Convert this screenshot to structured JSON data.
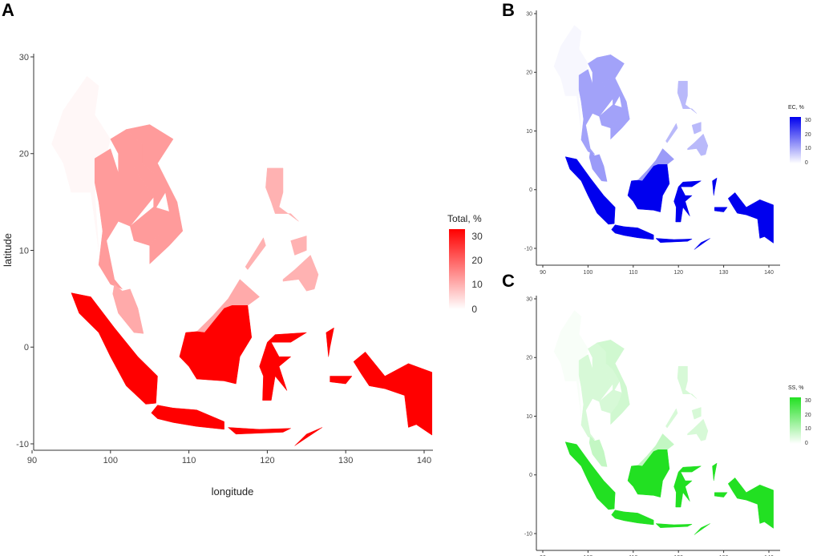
{
  "panels": [
    {
      "id": "A",
      "label": "A",
      "legend_title": "Total, %",
      "xlabel": "longitude",
      "ylabel": "latitude",
      "color_high": "#ff0000",
      "values": {
        "Myanmar": 1,
        "Thailand": 13,
        "Laos": 13,
        "Vietnam": 13,
        "Cambodia": 13,
        "Malaysia": 11,
        "Philippines": 10,
        "Indonesia": 33
      }
    },
    {
      "id": "B",
      "label": "B",
      "legend_title": "EC, %",
      "xlabel": "",
      "ylabel": "",
      "color_high": "#0000ee",
      "values": {
        "Myanmar": 1,
        "Thailand": 12,
        "Laos": 12,
        "Vietnam": 12,
        "Cambodia": 12,
        "Malaysia": 13,
        "Philippines": 9,
        "Indonesia": 33
      }
    },
    {
      "id": "C",
      "label": "C",
      "legend_title": "SS, %",
      "xlabel": "",
      "ylabel": "",
      "color_high": "#22e022",
      "values": {
        "Myanmar": 1,
        "Thailand": 6,
        "Laos": 6,
        "Vietnam": 7,
        "Cambodia": 6,
        "Malaysia": 9,
        "Philippines": 6,
        "Indonesia": 33
      }
    }
  ],
  "chart_data": {
    "type": "choropleth",
    "xlim": [
      90,
      143
    ],
    "ylim": [
      -11,
      30
    ],
    "xticks": [
      "90",
      "100",
      "110",
      "120",
      "130",
      "140"
    ],
    "yticks": [
      "-10",
      "0",
      "10",
      "20",
      "30"
    ],
    "legend_ticks": [
      "0",
      "10",
      "20",
      "30"
    ],
    "scale_max": 33,
    "countries": {
      "Myanmar": [
        [
          [
            92.5,
            21
          ],
          [
            94,
            24.5
          ],
          [
            97,
            28
          ],
          [
            98.5,
            27
          ],
          [
            98,
            24
          ],
          [
            100,
            21.5
          ],
          [
            99,
            18.5
          ],
          [
            98,
            16
          ],
          [
            98.5,
            10
          ],
          [
            97.5,
            16
          ],
          [
            95,
            16
          ],
          [
            94,
            19
          ]
        ]
      ],
      "Thailand": [
        [
          [
            98,
            19.5
          ],
          [
            100,
            20.5
          ],
          [
            101,
            18
          ],
          [
            103,
            18.5
          ],
          [
            105.5,
            15.5
          ],
          [
            102.5,
            12.5
          ],
          [
            101,
            13
          ],
          [
            99.5,
            11
          ],
          [
            100.5,
            7
          ],
          [
            101.5,
            6
          ],
          [
            100,
            6.5
          ],
          [
            98.5,
            8.5
          ],
          [
            99,
            12
          ],
          [
            98.5,
            15
          ],
          [
            98,
            17
          ]
        ]
      ],
      "Laos": [
        [
          [
            100,
            21.5
          ],
          [
            102,
            22.5
          ],
          [
            104,
            21
          ],
          [
            104,
            19
          ],
          [
            105.5,
            18
          ],
          [
            107,
            16
          ],
          [
            105.5,
            14
          ],
          [
            105.5,
            15.5
          ],
          [
            103,
            18.5
          ],
          [
            101,
            18
          ],
          [
            101,
            20
          ]
        ]
      ],
      "Vietnam": [
        [
          [
            102,
            22.5
          ],
          [
            105,
            23
          ],
          [
            108,
            21.5
          ],
          [
            106,
            19
          ],
          [
            108.5,
            15
          ],
          [
            109.2,
            12
          ],
          [
            107.5,
            10.5
          ],
          [
            105,
            8.6
          ],
          [
            105,
            10.5
          ],
          [
            106.5,
            12
          ],
          [
            107.5,
            14
          ],
          [
            107,
            16
          ],
          [
            105.5,
            18
          ],
          [
            104,
            19
          ],
          [
            104,
            21
          ]
        ]
      ],
      "Cambodia": [
        [
          [
            102.5,
            12.5
          ],
          [
            105.5,
            14.5
          ],
          [
            107.5,
            14
          ],
          [
            106.5,
            12
          ],
          [
            105,
            10.5
          ],
          [
            103,
            11
          ]
        ]
      ],
      "Malaysia": [
        [
          [
            100.5,
            6.5
          ],
          [
            101.5,
            5.8
          ],
          [
            102.5,
            6
          ],
          [
            103.5,
            4
          ],
          [
            104.2,
            1.4
          ],
          [
            103,
            1.5
          ],
          [
            101,
            3.5
          ],
          [
            100.3,
            5.5
          ]
        ],
        [
          [
            109.6,
            1.5
          ],
          [
            111,
            1.6
          ],
          [
            113,
            3.2
          ],
          [
            115,
            5
          ],
          [
            116.5,
            7
          ],
          [
            119,
            5.2
          ],
          [
            117.5,
            4.3
          ],
          [
            115.5,
            4.3
          ],
          [
            114.5,
            4
          ],
          [
            112,
            1.5
          ],
          [
            109.7,
            1
          ]
        ]
      ],
      "Philippines": [
        [
          [
            120,
            18.5
          ],
          [
            122,
            18.5
          ],
          [
            122,
            16
          ],
          [
            121.5,
            14.5
          ],
          [
            124,
            13
          ],
          [
            123,
            13.8
          ],
          [
            121,
            13.8
          ],
          [
            120.5,
            15
          ],
          [
            119.8,
            16.5
          ]
        ],
        [
          [
            122,
            7
          ],
          [
            123.5,
            8
          ],
          [
            125.5,
            9.5
          ],
          [
            126.5,
            7.5
          ],
          [
            126,
            6
          ],
          [
            125,
            5.8
          ],
          [
            124,
            7
          ],
          [
            122,
            6.8
          ]
        ],
        [
          [
            123,
            11
          ],
          [
            125,
            11.5
          ],
          [
            125,
            10
          ],
          [
            123.5,
            9.5
          ]
        ],
        [
          [
            117.2,
            8.3
          ],
          [
            119.5,
            11.3
          ],
          [
            119.8,
            10.5
          ],
          [
            117.5,
            8
          ]
        ]
      ],
      "Indonesia": [
        [
          [
            95,
            5.6
          ],
          [
            97.5,
            5.2
          ],
          [
            100.5,
            2
          ],
          [
            103.5,
            -1
          ],
          [
            106,
            -3
          ],
          [
            105.8,
            -5.8
          ],
          [
            104.5,
            -5.9
          ],
          [
            102,
            -4
          ],
          [
            100,
            -1
          ],
          [
            98.5,
            1.5
          ],
          [
            96,
            3.5
          ]
        ],
        [
          [
            105.2,
            -6.8
          ],
          [
            106,
            -6
          ],
          [
            108,
            -6.3
          ],
          [
            111,
            -6.5
          ],
          [
            114.5,
            -7.7
          ],
          [
            114.5,
            -8.5
          ],
          [
            111,
            -8.2
          ],
          [
            108,
            -7.8
          ],
          [
            106,
            -7.4
          ]
        ],
        [
          [
            108.8,
            -1
          ],
          [
            109.6,
            1.5
          ],
          [
            111,
            1.6
          ],
          [
            112,
            1.5
          ],
          [
            114.5,
            4
          ],
          [
            115.5,
            4.3
          ],
          [
            117.5,
            4.3
          ],
          [
            118,
            1
          ],
          [
            116.5,
            -1
          ],
          [
            116,
            -3.8
          ],
          [
            114.5,
            -3.5
          ],
          [
            111,
            -3.3
          ],
          [
            110,
            -2
          ]
        ],
        [
          [
            119.4,
            -5.5
          ],
          [
            119.5,
            -3
          ],
          [
            119,
            -2
          ],
          [
            120,
            0.5
          ],
          [
            121,
            1.3
          ],
          [
            125,
            1.5
          ],
          [
            123,
            0.5
          ],
          [
            120.5,
            0.5
          ],
          [
            121.5,
            -1
          ],
          [
            123,
            -1
          ],
          [
            121.5,
            -2
          ],
          [
            122.5,
            -4.5
          ],
          [
            121,
            -3
          ],
          [
            120.5,
            -5.5
          ]
        ],
        [
          [
            131,
            -1.5
          ],
          [
            132.5,
            -0.5
          ],
          [
            135,
            -3
          ],
          [
            138,
            -1.7
          ],
          [
            141,
            -2.6
          ],
          [
            141,
            -9.1
          ],
          [
            139,
            -8
          ],
          [
            138,
            -8.3
          ],
          [
            137.5,
            -5
          ],
          [
            135,
            -4.3
          ],
          [
            133,
            -4
          ],
          [
            132,
            -2.8
          ]
        ],
        [
          [
            115,
            -8.3
          ],
          [
            119,
            -8.5
          ],
          [
            123,
            -8.4
          ],
          [
            122,
            -8.8
          ],
          [
            116,
            -9
          ]
        ],
        [
          [
            123.5,
            -10.2
          ],
          [
            127,
            -8.3
          ],
          [
            125,
            -9
          ],
          [
            124,
            -9.8
          ]
        ],
        [
          [
            127.5,
            1.5
          ],
          [
            128.5,
            2
          ],
          [
            128,
            0
          ],
          [
            127.8,
            -1
          ]
        ],
        [
          [
            128,
            -3
          ],
          [
            130.8,
            -3
          ],
          [
            130,
            -3.8
          ],
          [
            128,
            -3.6
          ]
        ]
      ]
    }
  }
}
